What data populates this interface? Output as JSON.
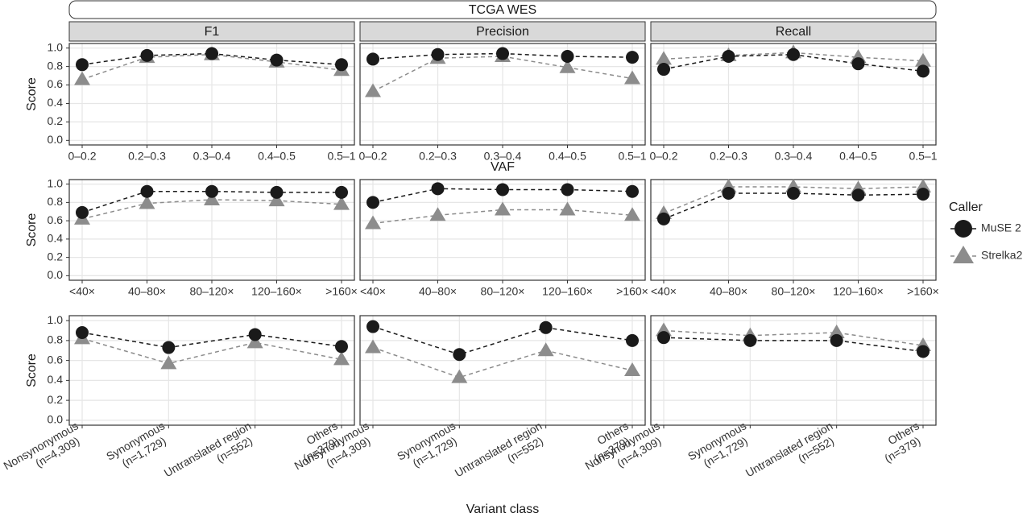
{
  "chart_data": {
    "type": "line",
    "title": "TCGA WES",
    "facets": [
      "F1",
      "Precision",
      "Recall"
    ],
    "y_label": "Score",
    "legend_title": "Caller",
    "series": [
      {
        "name": "MuSE 2",
        "color": "#1a1a1a",
        "marker": "circle"
      },
      {
        "name": "Strelka2",
        "color": "#8c8c8c",
        "marker": "triangle"
      }
    ],
    "ylim": [
      0,
      1
    ],
    "yticks": [
      {
        "value": 0,
        "label": "0.0"
      },
      0.2,
      0.4,
      0.6,
      0.8,
      {
        "value": 1,
        "label": "1.0"
      }
    ],
    "grid": true,
    "rows": [
      {
        "x_label": "VAF",
        "categories": [
          [
            "0–0.2"
          ],
          [
            "0.2–0.3"
          ],
          [
            "0.3–0.4"
          ],
          [
            "0.4–0.5"
          ],
          [
            "0.5–1"
          ]
        ],
        "panels": [
          [
            [
              0.82,
              0.92,
              0.94,
              0.87,
              0.82
            ],
            [
              0.66,
              0.9,
              0.93,
              0.85,
              0.76
            ]
          ],
          [
            [
              0.88,
              0.93,
              0.94,
              0.91,
              0.9
            ],
            [
              0.53,
              0.89,
              0.91,
              0.79,
              0.67
            ]
          ],
          [
            [
              0.77,
              0.91,
              0.93,
              0.83,
              0.75
            ],
            [
              0.88,
              0.92,
              0.95,
              0.9,
              0.86
            ]
          ]
        ]
      },
      {
        "categories": [
          [
            "<40×"
          ],
          [
            "40–80×"
          ],
          [
            "80–120×"
          ],
          [
            "120–160×"
          ],
          [
            ">160×"
          ]
        ],
        "panels": [
          [
            [
              0.69,
              0.92,
              0.92,
              0.91,
              0.91
            ],
            [
              0.62,
              0.79,
              0.83,
              0.82,
              0.78
            ]
          ],
          [
            [
              0.8,
              0.95,
              0.94,
              0.94,
              0.92
            ],
            [
              0.57,
              0.66,
              0.72,
              0.72,
              0.66
            ]
          ],
          [
            [
              0.62,
              0.9,
              0.9,
              0.88,
              0.89
            ],
            [
              0.68,
              0.97,
              0.97,
              0.95,
              0.97
            ]
          ]
        ]
      },
      {
        "x_label": "Variant class",
        "categories": [
          [
            "Nonsynonymous",
            "(n=4,309)"
          ],
          [
            "Synonymous",
            "(n=1,729)"
          ],
          [
            "Untranslated region",
            "(n=552)"
          ],
          [
            "Others",
            "(n=379)"
          ]
        ],
        "panels": [
          [
            [
              0.88,
              0.73,
              0.86,
              0.74
            ],
            [
              0.82,
              0.57,
              0.78,
              0.61
            ]
          ],
          [
            [
              0.94,
              0.66,
              0.93,
              0.8
            ],
            [
              0.73,
              0.43,
              0.7,
              0.5
            ]
          ],
          [
            [
              0.83,
              0.8,
              0.8,
              0.69
            ],
            [
              0.9,
              0.85,
              0.88,
              0.75
            ]
          ]
        ]
      }
    ]
  }
}
